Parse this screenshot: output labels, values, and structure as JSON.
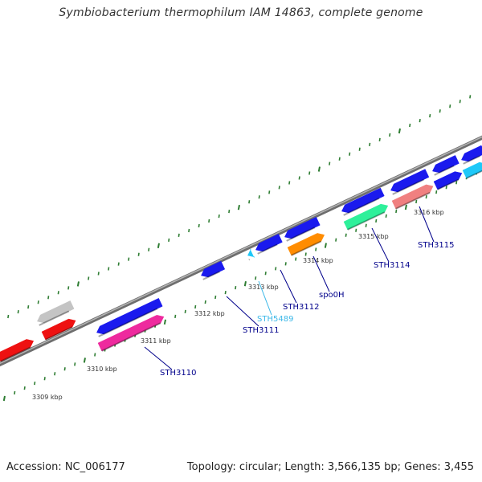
{
  "title": "Symbiobacterium thermophilum IAM 14863, complete genome",
  "footer": {
    "accession": "Accession: NC_006177",
    "summary": "Topology: circular; Length: 3,566,135 bp; Genes: 3,455"
  },
  "colors": {
    "backbone": "#8a8a8a",
    "ticks": "#2e7d32",
    "blue": "#1a1aee",
    "red": "#ee1111",
    "gray": "#c4c4c4",
    "pink": "#ee2a9e",
    "orange": "#ff8c00",
    "green": "#2ef09a",
    "salmon": "#f08080",
    "cyan": "#1ec8f8",
    "label_blue": "#00008b",
    "label_cyan": "#3cb8e8"
  },
  "scale_labels": [
    "3309 kbp",
    "3310 kbp",
    "3311 kbp",
    "3312 kbp",
    "3313 kbp",
    "3314 kbp",
    "3315 kbp",
    "3316 kbp"
  ],
  "gene_labels": [
    {
      "text": "STH3110",
      "color": "label_blue"
    },
    {
      "text": "STH3111",
      "color": "label_blue"
    },
    {
      "text": "STH5489",
      "color": "label_cyan"
    },
    {
      "text": "STH3112",
      "color": "label_blue"
    },
    {
      "text": "spo0H",
      "color": "label_blue"
    },
    {
      "text": "STH3114",
      "color": "label_blue"
    },
    {
      "text": "STH3115",
      "color": "label_blue"
    }
  ]
}
